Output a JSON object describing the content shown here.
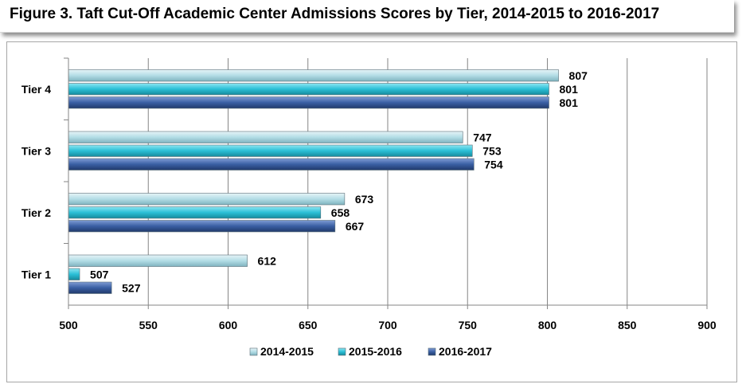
{
  "chart_data": {
    "type": "bar",
    "orientation": "horizontal",
    "title": "Figure 3. Taft Cut-Off Academic Center Admissions Scores by Tier, 2014-2015 to 2016-2017",
    "categories": [
      "Tier 1",
      "Tier 2",
      "Tier 3",
      "Tier 4"
    ],
    "series": [
      {
        "name": "2014-2015",
        "values": [
          612,
          673,
          747,
          807
        ],
        "color": "#b3dde6"
      },
      {
        "name": "2015-2016",
        "values": [
          507,
          658,
          753,
          801
        ],
        "color": "#2bbfd6"
      },
      {
        "name": "2016-2017",
        "values": [
          527,
          667,
          754,
          801
        ],
        "color": "#3a5fa3"
      }
    ],
    "xlim": [
      500,
      900
    ],
    "xticks": [
      500,
      550,
      600,
      650,
      700,
      750,
      800,
      850,
      900
    ],
    "grid": true,
    "legend_position": "bottom",
    "data_labels": true
  }
}
